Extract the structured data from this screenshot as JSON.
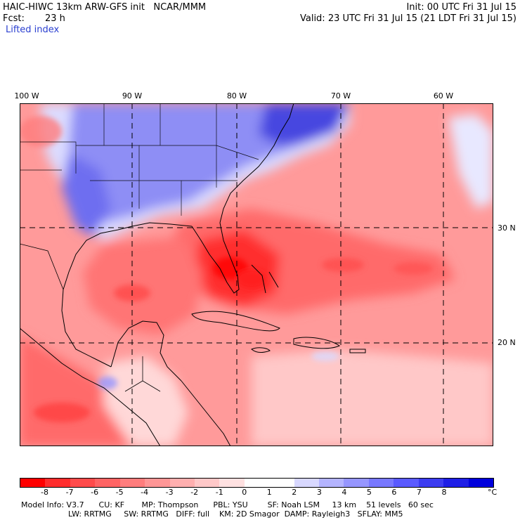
{
  "header": {
    "model_line": "HAIC-HIWC 13km ARW-GFS init   NCAR/MMM",
    "fcst_label": "Fcst:",
    "fcst_value": "23 h",
    "init_line": "Init: 00 UTC Fri 31 Jul 15",
    "valid_line": "Valid: 23 UTC Fri 31 Jul 15 (21 LDT Fri 31 Jul 15)",
    "field_name": "Lifted index"
  },
  "map": {
    "lon_labels": [
      "100 W",
      "90 W",
      "80 W",
      "70 W",
      "60 W"
    ],
    "lat_labels": [
      "30 N",
      "20 N"
    ]
  },
  "colorbar": {
    "colors": [
      "#ff0000",
      "#ff2d2d",
      "#ff4b4b",
      "#ff6464",
      "#ff7d7d",
      "#ff9696",
      "#ffafaf",
      "#ffc8c8",
      "#ffe1e1",
      "#ffffff",
      "#ffffff",
      "#d8d8ff",
      "#b4b4ff",
      "#9696ff",
      "#7878ff",
      "#5a5aff",
      "#3c3cf0",
      "#1e1ee6",
      "#0000dc"
    ],
    "tick_labels": [
      "-8",
      "-7",
      "-6",
      "-5",
      "-4",
      "-3",
      "-2",
      "-1",
      "0",
      "1",
      "2",
      "3",
      "4",
      "5",
      "6",
      "7",
      "8"
    ],
    "unit": "°C"
  },
  "model_info": {
    "line1": "Model Info: V3.7      CU: KF       MP: Thompson      PBL: YSU        SF: Noah LSM     13 km    51 levels   60 sec",
    "line2": "LW: RRTMG     SW: RRTMG   DIFF: full    KM: 2D Smagor  DAMP: Rayleigh3   SFLAY: MM5"
  }
}
